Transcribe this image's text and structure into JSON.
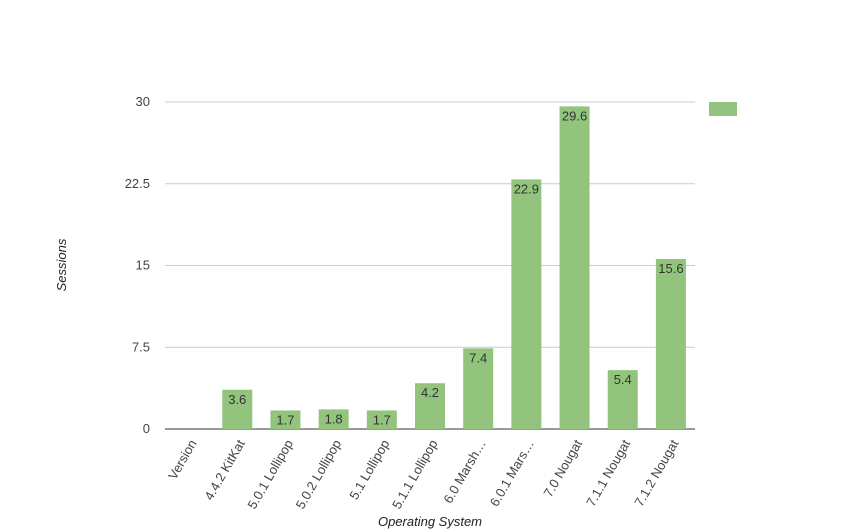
{
  "chart_data": {
    "type": "bar",
    "x_label": "Operating System",
    "y_label": "Sessions",
    "categories": [
      "Version",
      "4.4.2 KitKat",
      "5.0.1 Lollipop",
      "5.0.2 Lollipop",
      "5.1 Lollipop",
      "5.1.1 Lollipop",
      "6.0 Marsh…",
      "6.0.1 Mars…",
      "7.0 Nougat",
      "7.1.1 Nougat",
      "7.1.2 Nougat"
    ],
    "values": [
      null,
      3.6,
      1.7,
      1.8,
      1.7,
      4.2,
      7.4,
      22.9,
      29.6,
      5.4,
      15.6
    ],
    "color": "#93c47d",
    "ylim": [
      0,
      30
    ],
    "yticks": [
      0,
      7.5,
      15,
      22.5,
      30
    ],
    "grid": true,
    "legend": "top-right"
  }
}
